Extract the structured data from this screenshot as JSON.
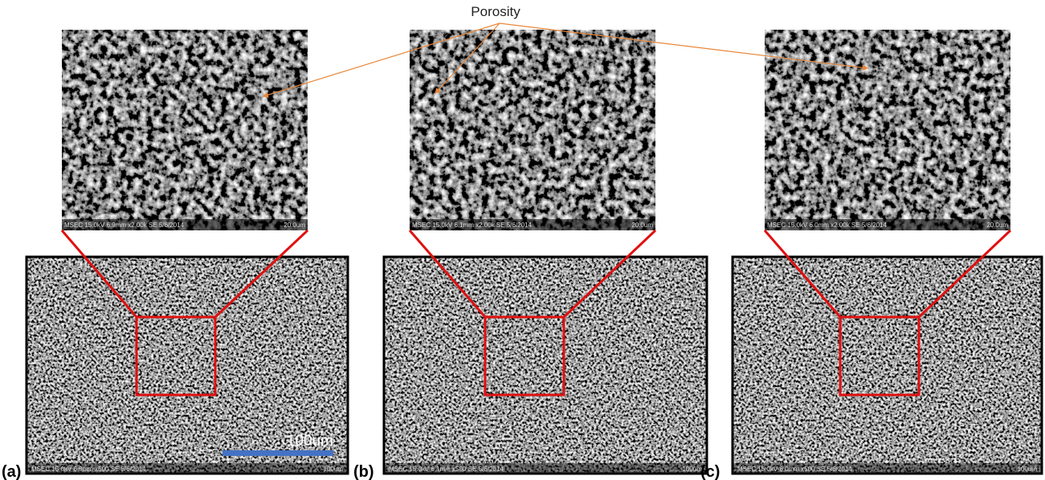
{
  "annotation": "Porosity",
  "scale_bar_label": "100um",
  "panels": [
    {
      "label": "(a)",
      "top": {
        "info": "MSEC 15.0kV 6.9mm x2.00k SE  5/6/2014",
        "scale": "20.0um"
      },
      "bottom": {
        "info": "MSEC 15.0kV 6.9mm x500 SE  5/6/2014",
        "scale": "100um"
      }
    },
    {
      "label": "(b)",
      "top": {
        "info": "MSEC 15.0kV 6.1mm x2.00k SE  5/6/2014",
        "scale": "20.0um"
      },
      "bottom": {
        "info": "MSEC 15.0kV 6.1mm x500 SE  5/6/2014",
        "scale": "100um"
      }
    },
    {
      "label": "(c)",
      "top": {
        "info": "MSEC 15.0kV 6.0mm x2.00k SE  5/6/2014",
        "scale": "20.0um"
      },
      "bottom": {
        "info": "MSEC 15.0kV 6.0mm x500 SE  5/6/2014",
        "scale": "100um"
      }
    }
  ]
}
